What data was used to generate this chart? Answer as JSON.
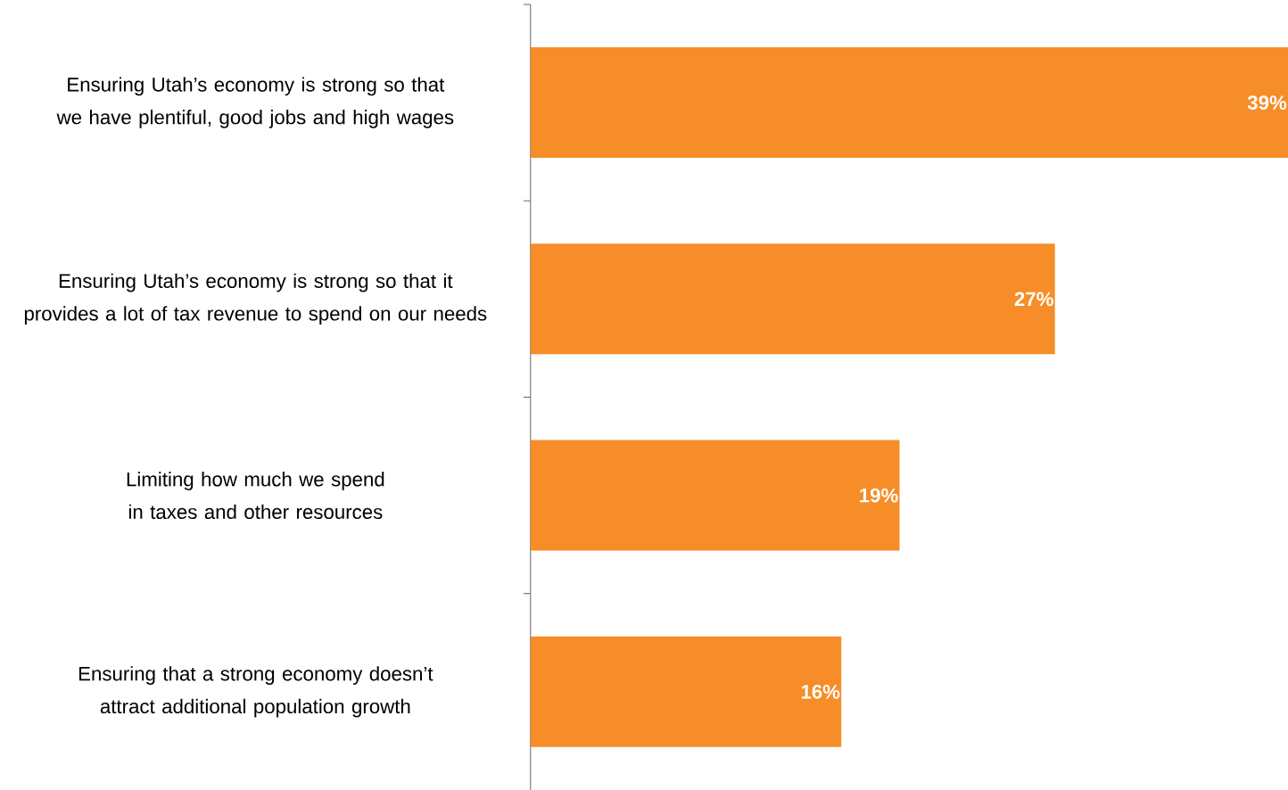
{
  "chart_data": {
    "type": "bar",
    "orientation": "horizontal",
    "categories": [
      "Ensuring Utah’s economy is strong so that we have plentiful, good jobs and high wages",
      "Ensuring Utah’s economy is strong so that it provides a lot of tax revenue to spend on our needs",
      "Limiting how much we spend in taxes and other resources",
      "Ensuring that a strong economy doesn’t attract additional population growth"
    ],
    "values": [
      39,
      27,
      19,
      16
    ],
    "value_labels": [
      "39%",
      "27%",
      "19%",
      "16%"
    ],
    "color": "#f68d28"
  }
}
